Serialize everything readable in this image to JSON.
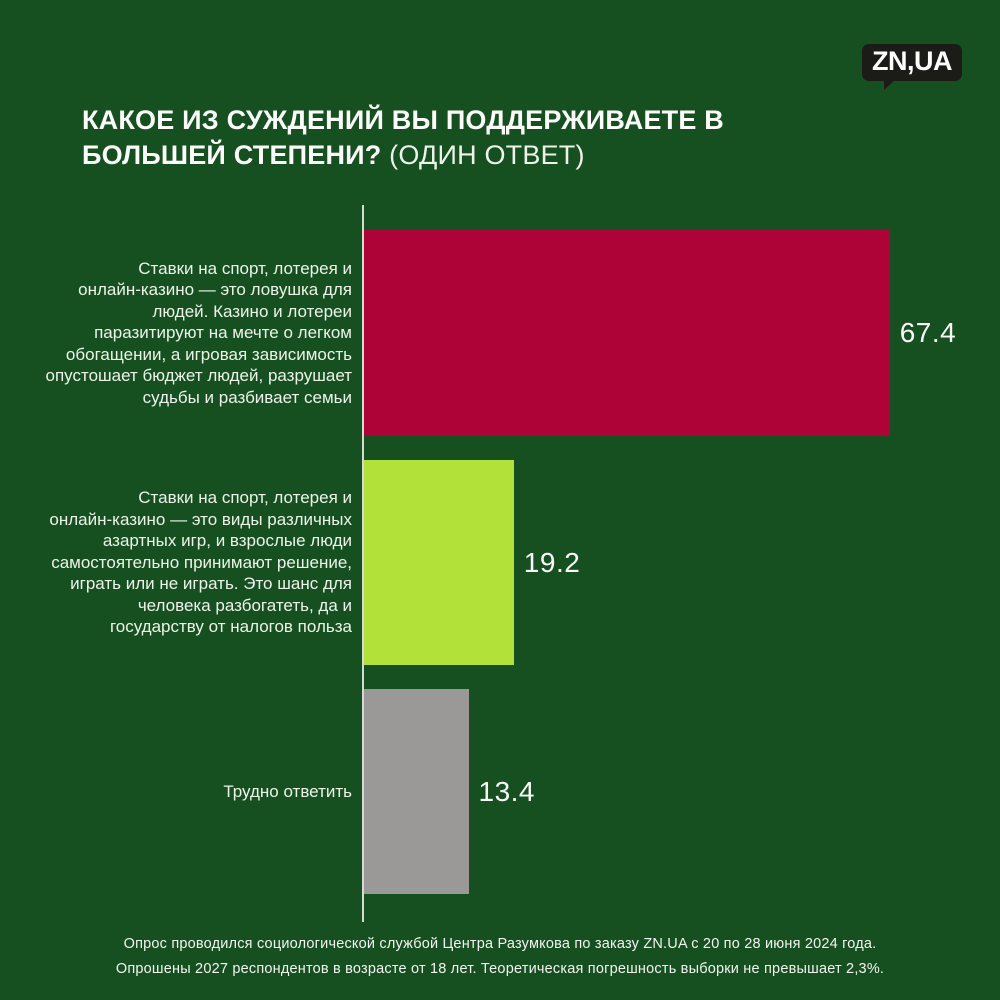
{
  "logo": {
    "text": "ZN,UA"
  },
  "title": {
    "main": "КАКОЕ ИЗ СУЖДЕНИЙ ВЫ ПОДДЕРЖИВАЕТЕ В\nБОЛЬШЕЙ СТЕПЕНИ?",
    "suffix": " (ОДИН ОТВЕТ)"
  },
  "chart_data": {
    "type": "bar",
    "orientation": "horizontal",
    "title": "КАКОЕ ИЗ СУЖДЕНИЙ ВЫ ПОДДЕРЖИВАЕТЕ В БОЛЬШЕЙ СТЕПЕНИ? (ОДИН ОТВЕТ)",
    "categories": [
      "Ставки на спорт, лотерея и\nонлайн-казино — это ловушка для\nлюдей. Казино и лотереи\nпаразитируют на мечте о легком\nобогащении, а игровая зависимость\nопустошает бюджет людей, разрушает\nсудьбы и разбивает семьи",
      "Ставки на спорт, лотерея и\nонлайн-казино — это виды различных\nазартных игр, и взрослые люди\nсамостоятельно принимают решение,\nиграть или не играть. Это шанс для\nчеловека разбогатеть, да и\nгосударству от налогов польза",
      "Трудно ответить"
    ],
    "values": [
      67.4,
      19.2,
      13.4
    ],
    "value_labels": [
      "67.4",
      "19.2",
      "13.4"
    ],
    "colors": [
      "#ae0336",
      "#b2e23a",
      "#9a9998"
    ],
    "xlim": [
      0,
      81
    ],
    "grid": false,
    "legend": false
  },
  "footer": {
    "line1": "Опрос проводился социологической службой Центра Разумкова по заказу ZN.UA с 20 по 28 июня 2024 года.",
    "line2": "Опрошены 2027 респондентов в возрасте от 18 лет. Теоретическая погрешность выборки не превышает 2,3%."
  },
  "colors": {
    "background": "#165021",
    "axis_line": "#d6dbd2",
    "text": "#eef3ea"
  }
}
